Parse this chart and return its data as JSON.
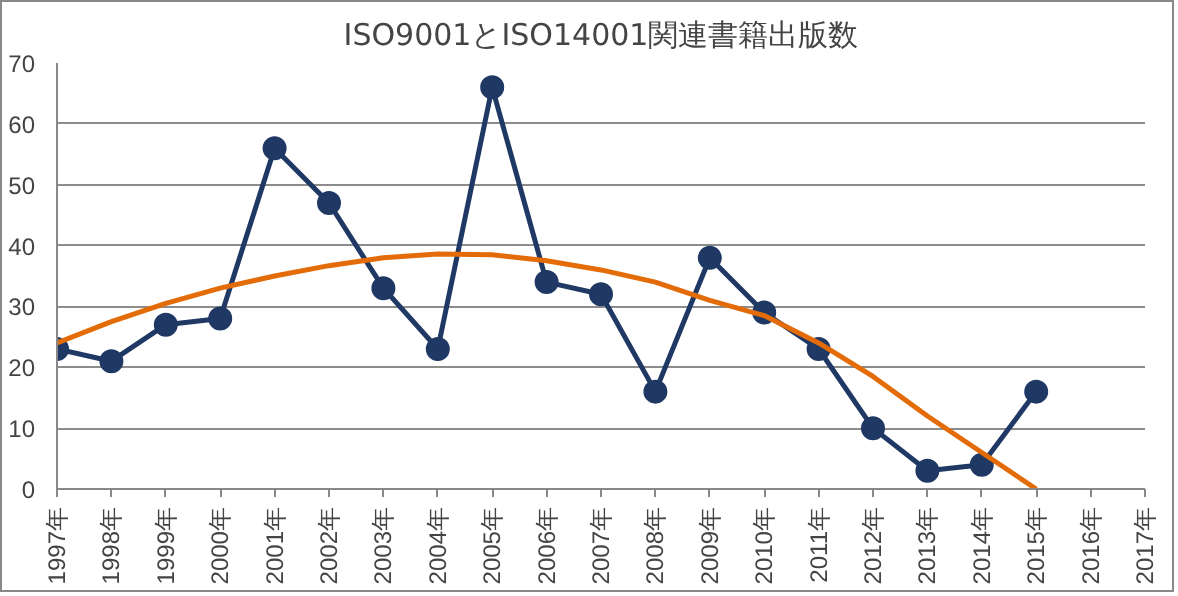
{
  "chart_data": {
    "type": "line",
    "title": "ISO9001とISO14001関連書籍出版数",
    "categories": [
      "1997年",
      "1998年",
      "1999年",
      "2000年",
      "2001年",
      "2002年",
      "2003年",
      "2004年",
      "2005年",
      "2006年",
      "2007年",
      "2008年",
      "2009年",
      "2010年",
      "2011年",
      "2012年",
      "2013年",
      "2014年",
      "2015年",
      "2016年",
      "2017年"
    ],
    "series": [
      {
        "color": "#1f3864",
        "marker": "circle",
        "values": [
          23,
          21,
          27,
          28,
          56,
          47,
          33,
          23,
          66,
          34,
          32,
          16,
          38,
          29,
          23,
          10,
          3,
          4,
          16,
          null,
          null
        ]
      },
      {
        "color": "#e36c09",
        "marker": "none",
        "values": [
          24,
          27.5,
          30.5,
          33,
          35,
          36.7,
          38,
          38.6,
          38.5,
          37.5,
          36,
          34,
          31,
          28.5,
          24,
          18.5,
          12,
          6,
          0,
          null,
          null
        ]
      }
    ],
    "ylim": [
      0,
      70
    ],
    "yticks": [
      0,
      10,
      20,
      30,
      40,
      50,
      60,
      70
    ],
    "grid": "y"
  }
}
